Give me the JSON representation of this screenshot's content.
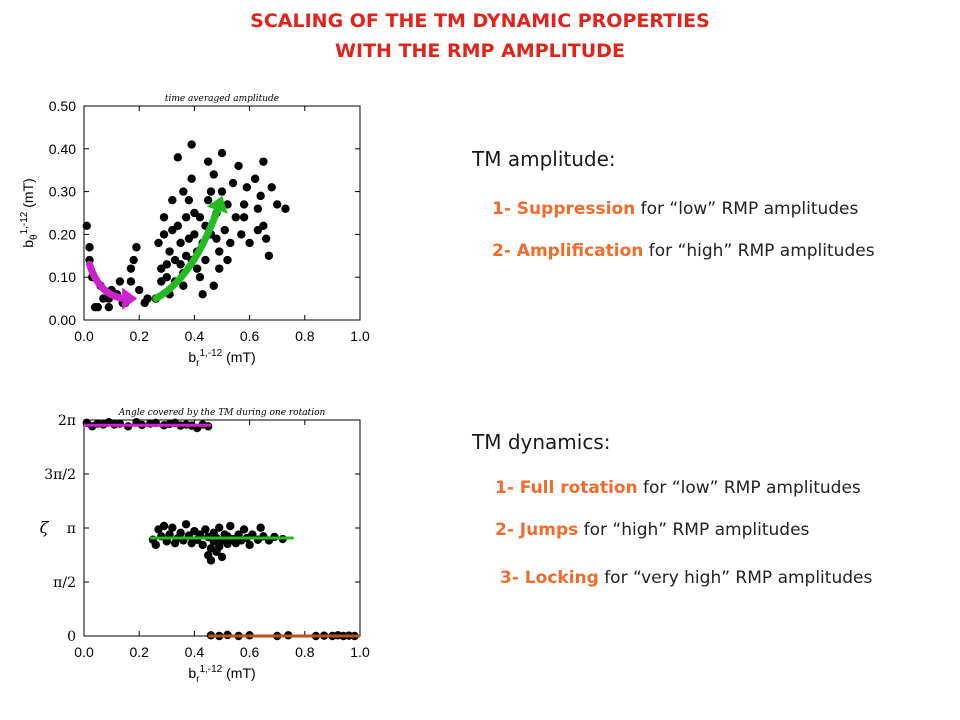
{
  "header": {
    "line1": "SCALING OF THE TM DYNAMIC PROPERTIES",
    "line2": "WITH THE RMP AMPLITUDE"
  },
  "colors": {
    "title": "#e0241b",
    "highlight": "#f26b2d",
    "magenta": "#cc22cc",
    "green": "#22bb22",
    "brown": "#b5541c",
    "points": "#000000"
  },
  "amplitude": {
    "heading": "TM amplitude:",
    "items": [
      {
        "key": "1- Suppression",
        "rest": " for “low” RMP amplitudes"
      },
      {
        "key": "2- Amplification",
        "rest": " for “high” RMP amplitudes"
      }
    ]
  },
  "dynamics": {
    "heading": "TM dynamics:",
    "items": [
      {
        "key": "1- Full rotation",
        "rest": " for “low” RMP amplitudes"
      },
      {
        "key": "2- Jumps",
        "rest": " for “high” RMP amplitudes"
      },
      {
        "key": "3- Locking",
        "rest": " for “very high” RMP amplitudes"
      }
    ]
  },
  "chart_data": [
    {
      "type": "scatter",
      "title": "time averaged amplitude",
      "xlabel": "b_r^{1,-12} (mT)",
      "ylabel": "b_θ^{1,-12} (mT)",
      "xlim": [
        0,
        1
      ],
      "ylim": [
        0,
        0.5
      ],
      "xticks": [
        "0.0",
        "0.2",
        "0.4",
        "0.6",
        "0.8",
        "1.0"
      ],
      "yticks": [
        "0.00",
        "0.10",
        "0.20",
        "0.30",
        "0.40",
        "0.50"
      ],
      "grid": false,
      "arrows": [
        {
          "color": "magenta",
          "from": [
            0.02,
            0.13
          ],
          "via": [
            0.06,
            0.05
          ],
          "to": [
            0.16,
            0.05
          ]
        },
        {
          "color": "green",
          "from": [
            0.26,
            0.05
          ],
          "via": [
            0.4,
            0.1
          ],
          "to": [
            0.49,
            0.27
          ]
        }
      ],
      "points": [
        [
          0.01,
          0.22
        ],
        [
          0.02,
          0.17
        ],
        [
          0.02,
          0.14
        ],
        [
          0.03,
          0.1
        ],
        [
          0.04,
          0.03
        ],
        [
          0.05,
          0.03
        ],
        [
          0.06,
          0.08
        ],
        [
          0.07,
          0.05
        ],
        [
          0.09,
          0.05
        ],
        [
          0.09,
          0.03
        ],
        [
          0.1,
          0.07
        ],
        [
          0.12,
          0.06
        ],
        [
          0.13,
          0.09
        ],
        [
          0.14,
          0.04
        ],
        [
          0.15,
          0.04
        ],
        [
          0.17,
          0.12
        ],
        [
          0.17,
          0.09
        ],
        [
          0.18,
          0.14
        ],
        [
          0.19,
          0.17
        ],
        [
          0.2,
          0.07
        ],
        [
          0.22,
          0.04
        ],
        [
          0.23,
          0.05
        ],
        [
          0.26,
          0.05
        ],
        [
          0.27,
          0.18
        ],
        [
          0.28,
          0.09
        ],
        [
          0.28,
          0.12
        ],
        [
          0.29,
          0.24
        ],
        [
          0.29,
          0.2
        ],
        [
          0.3,
          0.13
        ],
        [
          0.3,
          0.1
        ],
        [
          0.31,
          0.06
        ],
        [
          0.31,
          0.16
        ],
        [
          0.32,
          0.28
        ],
        [
          0.32,
          0.21
        ],
        [
          0.33,
          0.09
        ],
        [
          0.33,
          0.14
        ],
        [
          0.34,
          0.22
        ],
        [
          0.34,
          0.38
        ],
        [
          0.35,
          0.18
        ],
        [
          0.35,
          0.13
        ],
        [
          0.36,
          0.11
        ],
        [
          0.36,
          0.3
        ],
        [
          0.36,
          0.08
        ],
        [
          0.37,
          0.15
        ],
        [
          0.37,
          0.24
        ],
        [
          0.38,
          0.19
        ],
        [
          0.38,
          0.28
        ],
        [
          0.39,
          0.14
        ],
        [
          0.39,
          0.41
        ],
        [
          0.39,
          0.33
        ],
        [
          0.4,
          0.25
        ],
        [
          0.4,
          0.2
        ],
        [
          0.41,
          0.12
        ],
        [
          0.41,
          0.16
        ],
        [
          0.42,
          0.24
        ],
        [
          0.42,
          0.1
        ],
        [
          0.43,
          0.06
        ],
        [
          0.43,
          0.18
        ],
        [
          0.44,
          0.22
        ],
        [
          0.44,
          0.14
        ],
        [
          0.45,
          0.28
        ],
        [
          0.45,
          0.37
        ],
        [
          0.46,
          0.3
        ],
        [
          0.46,
          0.2
        ],
        [
          0.47,
          0.34
        ],
        [
          0.47,
          0.08
        ],
        [
          0.48,
          0.25
        ],
        [
          0.48,
          0.19
        ],
        [
          0.49,
          0.16
        ],
        [
          0.49,
          0.12
        ],
        [
          0.5,
          0.39
        ],
        [
          0.5,
          0.3
        ],
        [
          0.51,
          0.21
        ],
        [
          0.52,
          0.27
        ],
        [
          0.52,
          0.14
        ],
        [
          0.53,
          0.18
        ],
        [
          0.54,
          0.32
        ],
        [
          0.55,
          0.24
        ],
        [
          0.56,
          0.36
        ],
        [
          0.57,
          0.2
        ],
        [
          0.58,
          0.27
        ],
        [
          0.58,
          0.24
        ],
        [
          0.59,
          0.31
        ],
        [
          0.6,
          0.18
        ],
        [
          0.62,
          0.33
        ],
        [
          0.63,
          0.26
        ],
        [
          0.63,
          0.21
        ],
        [
          0.64,
          0.29
        ],
        [
          0.65,
          0.37
        ],
        [
          0.65,
          0.22
        ],
        [
          0.66,
          0.19
        ],
        [
          0.67,
          0.15
        ],
        [
          0.68,
          0.31
        ],
        [
          0.7,
          0.27
        ],
        [
          0.73,
          0.26
        ]
      ]
    },
    {
      "type": "scatter",
      "title": "Angle covered by the TM during one rotation",
      "xlabel": "b_r^{1,-12} (mT)",
      "ylabel": "ζ",
      "xlim": [
        0,
        1
      ],
      "ylim": [
        0,
        6.2832
      ],
      "xticks": [
        "0.0",
        "0.2",
        "0.4",
        "0.6",
        "0.8",
        "1.0"
      ],
      "yticks": [
        "0",
        "π/2",
        "π",
        "3π/2",
        "2π"
      ],
      "ytick_values": [
        0,
        1.5708,
        3.1416,
        4.7124,
        6.2832
      ],
      "grid": false,
      "fit_lines": [
        {
          "color": "magenta",
          "x": [
            0.0,
            0.46
          ],
          "y": 6.13
        },
        {
          "color": "green",
          "x": [
            0.24,
            0.76
          ],
          "y": 2.85
        },
        {
          "color": "brown",
          "x": [
            0.45,
            1.0
          ],
          "y": 0.0
        }
      ],
      "points": [
        [
          0.01,
          6.2
        ],
        [
          0.03,
          6.1
        ],
        [
          0.05,
          6.18
        ],
        [
          0.07,
          6.15
        ],
        [
          0.09,
          6.22
        ],
        [
          0.11,
          6.15
        ],
        [
          0.13,
          6.18
        ],
        [
          0.16,
          6.1
        ],
        [
          0.19,
          6.22
        ],
        [
          0.21,
          6.14
        ],
        [
          0.24,
          6.18
        ],
        [
          0.26,
          6.2
        ],
        [
          0.29,
          6.13
        ],
        [
          0.31,
          6.17
        ],
        [
          0.33,
          6.2
        ],
        [
          0.35,
          6.12
        ],
        [
          0.37,
          6.15
        ],
        [
          0.39,
          6.12
        ],
        [
          0.41,
          6.05
        ],
        [
          0.43,
          6.15
        ],
        [
          0.45,
          6.1
        ],
        [
          0.25,
          2.8
        ],
        [
          0.26,
          2.65
        ],
        [
          0.27,
          3.1
        ],
        [
          0.28,
          2.9
        ],
        [
          0.29,
          3.2
        ],
        [
          0.3,
          2.75
        ],
        [
          0.31,
          2.95
        ],
        [
          0.32,
          3.15
        ],
        [
          0.33,
          2.7
        ],
        [
          0.34,
          2.85
        ],
        [
          0.35,
          3.0
        ],
        [
          0.36,
          2.78
        ],
        [
          0.37,
          3.25
        ],
        [
          0.38,
          2.92
        ],
        [
          0.39,
          2.7
        ],
        [
          0.4,
          3.05
        ],
        [
          0.41,
          2.8
        ],
        [
          0.42,
          2.95
        ],
        [
          0.43,
          2.65
        ],
        [
          0.44,
          3.1
        ],
        [
          0.45,
          2.88
        ],
        [
          0.45,
          2.35
        ],
        [
          0.46,
          2.2
        ],
        [
          0.46,
          2.55
        ],
        [
          0.47,
          2.75
        ],
        [
          0.47,
          3.0
        ],
        [
          0.48,
          2.45
        ],
        [
          0.48,
          2.85
        ],
        [
          0.49,
          2.6
        ],
        [
          0.49,
          3.15
        ],
        [
          0.5,
          2.78
        ],
        [
          0.5,
          2.3
        ],
        [
          0.51,
          2.95
        ],
        [
          0.52,
          2.68
        ],
        [
          0.52,
          2.9
        ],
        [
          0.53,
          3.2
        ],
        [
          0.54,
          2.82
        ],
        [
          0.55,
          2.7
        ],
        [
          0.56,
          2.95
        ],
        [
          0.57,
          2.78
        ],
        [
          0.58,
          3.1
        ],
        [
          0.59,
          2.85
        ],
        [
          0.6,
          2.65
        ],
        [
          0.61,
          2.95
        ],
        [
          0.63,
          2.8
        ],
        [
          0.64,
          3.15
        ],
        [
          0.65,
          2.9
        ],
        [
          0.67,
          2.78
        ],
        [
          0.69,
          2.88
        ],
        [
          0.72,
          2.82
        ],
        [
          0.46,
          0.02
        ],
        [
          0.49,
          0.0
        ],
        [
          0.52,
          0.03
        ],
        [
          0.56,
          0.0
        ],
        [
          0.6,
          0.02
        ],
        [
          0.7,
          0.0
        ],
        [
          0.74,
          0.02
        ],
        [
          0.84,
          0.0
        ],
        [
          0.87,
          0.01
        ],
        [
          0.9,
          0.0
        ],
        [
          0.92,
          0.02
        ],
        [
          0.94,
          0.0
        ],
        [
          0.96,
          0.01
        ],
        [
          0.98,
          0.0
        ]
      ]
    }
  ]
}
